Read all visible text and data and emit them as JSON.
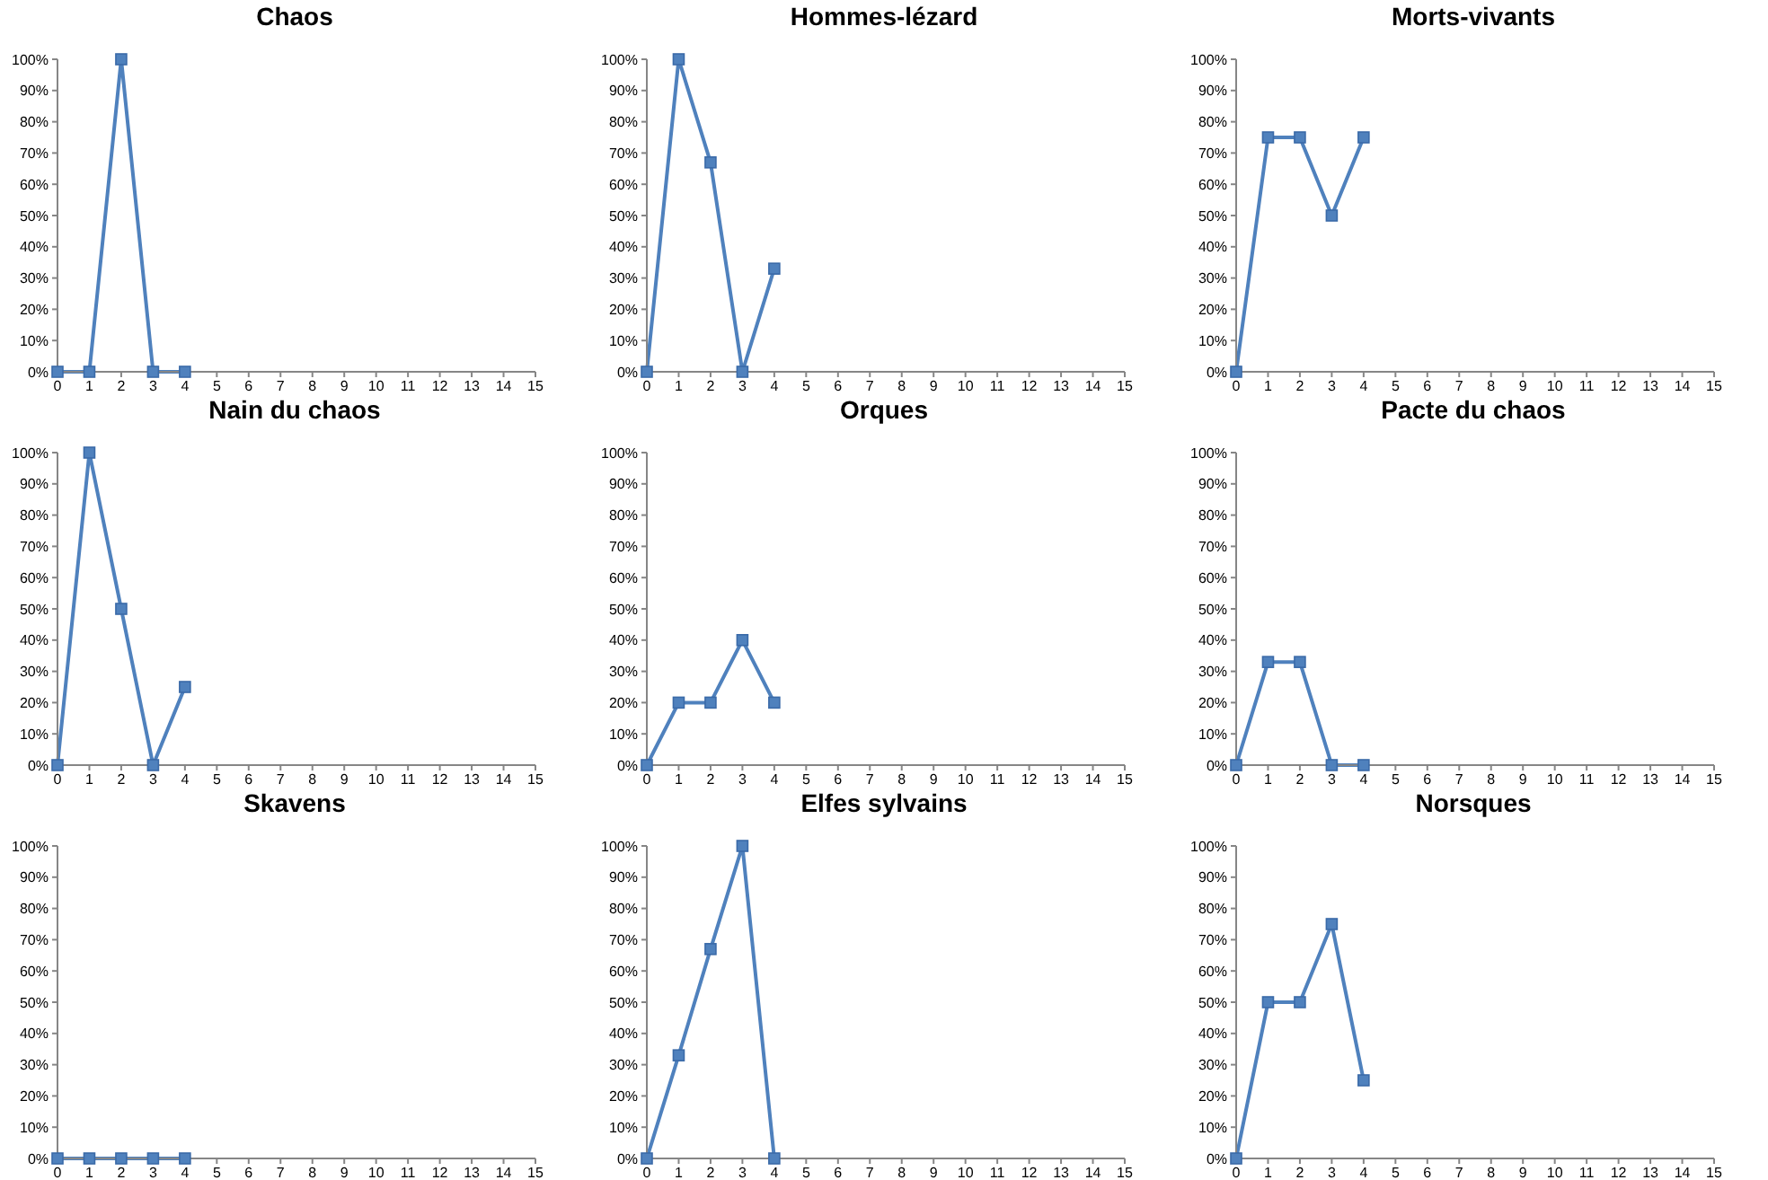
{
  "chart_data": [
    {
      "type": "line",
      "title": "Chaos",
      "x": [
        0,
        1,
        2,
        3,
        4
      ],
      "values": [
        0,
        0,
        100,
        0,
        0
      ],
      "color": "#4f81bd",
      "marker": "square",
      "xlim": [
        0,
        15
      ],
      "xticks": [
        0,
        1,
        2,
        3,
        4,
        5,
        6,
        7,
        8,
        9,
        10,
        11,
        12,
        13,
        14,
        15
      ],
      "ylim": [
        0,
        100
      ],
      "yticks": [
        {
          "value": 0,
          "label": "0%"
        },
        {
          "value": 10,
          "label": "10%"
        },
        {
          "value": 20,
          "label": "20%"
        },
        {
          "value": 30,
          "label": "30%"
        },
        {
          "value": 40,
          "label": "40%"
        },
        {
          "value": 50,
          "label": "50%"
        },
        {
          "value": 60,
          "label": "60%"
        },
        {
          "value": 70,
          "label": "70%"
        },
        {
          "value": 80,
          "label": "80%"
        },
        {
          "value": 90,
          "label": "90%"
        },
        {
          "value": 100,
          "label": "100%"
        }
      ]
    },
    {
      "type": "line",
      "title": "Hommes-lézard",
      "x": [
        0,
        1,
        2,
        3,
        4
      ],
      "values": [
        0,
        100,
        67,
        0,
        33
      ],
      "color": "#4f81bd",
      "marker": "square",
      "xlim": [
        0,
        15
      ],
      "xticks": [
        0,
        1,
        2,
        3,
        4,
        5,
        6,
        7,
        8,
        9,
        10,
        11,
        12,
        13,
        14,
        15
      ],
      "ylim": [
        0,
        100
      ],
      "yticks": [
        {
          "value": 0,
          "label": "0%"
        },
        {
          "value": 10,
          "label": "10%"
        },
        {
          "value": 20,
          "label": "20%"
        },
        {
          "value": 30,
          "label": "30%"
        },
        {
          "value": 40,
          "label": "40%"
        },
        {
          "value": 50,
          "label": "50%"
        },
        {
          "value": 60,
          "label": "60%"
        },
        {
          "value": 70,
          "label": "70%"
        },
        {
          "value": 80,
          "label": "80%"
        },
        {
          "value": 90,
          "label": "90%"
        },
        {
          "value": 100,
          "label": "100%"
        }
      ]
    },
    {
      "type": "line",
      "title": "Morts-vivants",
      "x": [
        0,
        1,
        2,
        3,
        4
      ],
      "values": [
        0,
        75,
        75,
        50,
        75
      ],
      "color": "#4f81bd",
      "marker": "square",
      "xlim": [
        0,
        15
      ],
      "xticks": [
        0,
        1,
        2,
        3,
        4,
        5,
        6,
        7,
        8,
        9,
        10,
        11,
        12,
        13,
        14,
        15
      ],
      "ylim": [
        0,
        100
      ],
      "yticks": [
        {
          "value": 0,
          "label": "0%"
        },
        {
          "value": 10,
          "label": "10%"
        },
        {
          "value": 20,
          "label": "20%"
        },
        {
          "value": 30,
          "label": "30%"
        },
        {
          "value": 40,
          "label": "40%"
        },
        {
          "value": 50,
          "label": "50%"
        },
        {
          "value": 60,
          "label": "60%"
        },
        {
          "value": 70,
          "label": "70%"
        },
        {
          "value": 80,
          "label": "80%"
        },
        {
          "value": 90,
          "label": "90%"
        },
        {
          "value": 100,
          "label": "100%"
        }
      ]
    },
    {
      "type": "line",
      "title": "Nain du chaos",
      "x": [
        0,
        1,
        2,
        3,
        4
      ],
      "values": [
        0,
        100,
        50,
        0,
        25
      ],
      "color": "#4f81bd",
      "marker": "square",
      "xlim": [
        0,
        15
      ],
      "xticks": [
        0,
        1,
        2,
        3,
        4,
        5,
        6,
        7,
        8,
        9,
        10,
        11,
        12,
        13,
        14,
        15
      ],
      "ylim": [
        0,
        100
      ],
      "yticks": [
        {
          "value": 0,
          "label": "0%"
        },
        {
          "value": 10,
          "label": "10%"
        },
        {
          "value": 20,
          "label": "20%"
        },
        {
          "value": 30,
          "label": "30%"
        },
        {
          "value": 40,
          "label": "40%"
        },
        {
          "value": 50,
          "label": "50%"
        },
        {
          "value": 60,
          "label": "60%"
        },
        {
          "value": 70,
          "label": "70%"
        },
        {
          "value": 80,
          "label": "80%"
        },
        {
          "value": 90,
          "label": "90%"
        },
        {
          "value": 100,
          "label": "100%"
        }
      ]
    },
    {
      "type": "line",
      "title": "Orques",
      "x": [
        0,
        1,
        2,
        3,
        4
      ],
      "values": [
        0,
        20,
        20,
        40,
        20
      ],
      "color": "#4f81bd",
      "marker": "square",
      "xlim": [
        0,
        15
      ],
      "xticks": [
        0,
        1,
        2,
        3,
        4,
        5,
        6,
        7,
        8,
        9,
        10,
        11,
        12,
        13,
        14,
        15
      ],
      "ylim": [
        0,
        100
      ],
      "yticks": [
        {
          "value": 0,
          "label": "0%"
        },
        {
          "value": 10,
          "label": "10%"
        },
        {
          "value": 20,
          "label": "20%"
        },
        {
          "value": 30,
          "label": "30%"
        },
        {
          "value": 40,
          "label": "40%"
        },
        {
          "value": 50,
          "label": "50%"
        },
        {
          "value": 60,
          "label": "60%"
        },
        {
          "value": 70,
          "label": "70%"
        },
        {
          "value": 80,
          "label": "80%"
        },
        {
          "value": 90,
          "label": "90%"
        },
        {
          "value": 100,
          "label": "100%"
        }
      ]
    },
    {
      "type": "line",
      "title": "Pacte du chaos",
      "x": [
        0,
        1,
        2,
        3,
        4
      ],
      "values": [
        0,
        33,
        33,
        0,
        0
      ],
      "color": "#4f81bd",
      "marker": "square",
      "xlim": [
        0,
        15
      ],
      "xticks": [
        0,
        1,
        2,
        3,
        4,
        5,
        6,
        7,
        8,
        9,
        10,
        11,
        12,
        13,
        14,
        15
      ],
      "ylim": [
        0,
        100
      ],
      "yticks": [
        {
          "value": 0,
          "label": "0%"
        },
        {
          "value": 10,
          "label": "10%"
        },
        {
          "value": 20,
          "label": "20%"
        },
        {
          "value": 30,
          "label": "30%"
        },
        {
          "value": 40,
          "label": "40%"
        },
        {
          "value": 50,
          "label": "50%"
        },
        {
          "value": 60,
          "label": "60%"
        },
        {
          "value": 70,
          "label": "70%"
        },
        {
          "value": 80,
          "label": "80%"
        },
        {
          "value": 90,
          "label": "90%"
        },
        {
          "value": 100,
          "label": "100%"
        }
      ]
    },
    {
      "type": "line",
      "title": "Skavens",
      "x": [
        0,
        1,
        2,
        3,
        4
      ],
      "values": [
        0,
        0,
        0,
        0,
        0
      ],
      "color": "#4f81bd",
      "marker": "square",
      "xlim": [
        0,
        15
      ],
      "xticks": [
        0,
        1,
        2,
        3,
        4,
        5,
        6,
        7,
        8,
        9,
        10,
        11,
        12,
        13,
        14,
        15
      ],
      "ylim": [
        0,
        100
      ],
      "yticks": [
        {
          "value": 0,
          "label": "0%"
        },
        {
          "value": 10,
          "label": "10%"
        },
        {
          "value": 20,
          "label": "20%"
        },
        {
          "value": 30,
          "label": "30%"
        },
        {
          "value": 40,
          "label": "40%"
        },
        {
          "value": 50,
          "label": "50%"
        },
        {
          "value": 60,
          "label": "60%"
        },
        {
          "value": 70,
          "label": "70%"
        },
        {
          "value": 80,
          "label": "80%"
        },
        {
          "value": 90,
          "label": "90%"
        },
        {
          "value": 100,
          "label": "100%"
        }
      ]
    },
    {
      "type": "line",
      "title": "Elfes sylvains",
      "x": [
        0,
        1,
        2,
        3,
        4
      ],
      "values": [
        0,
        33,
        67,
        100,
        0
      ],
      "color": "#4f81bd",
      "marker": "square",
      "xlim": [
        0,
        15
      ],
      "xticks": [
        0,
        1,
        2,
        3,
        4,
        5,
        6,
        7,
        8,
        9,
        10,
        11,
        12,
        13,
        14,
        15
      ],
      "ylim": [
        0,
        100
      ],
      "yticks": [
        {
          "value": 0,
          "label": "0%"
        },
        {
          "value": 10,
          "label": "10%"
        },
        {
          "value": 20,
          "label": "20%"
        },
        {
          "value": 30,
          "label": "30%"
        },
        {
          "value": 40,
          "label": "40%"
        },
        {
          "value": 50,
          "label": "50%"
        },
        {
          "value": 60,
          "label": "60%"
        },
        {
          "value": 70,
          "label": "70%"
        },
        {
          "value": 80,
          "label": "80%"
        },
        {
          "value": 90,
          "label": "90%"
        },
        {
          "value": 100,
          "label": "100%"
        }
      ]
    },
    {
      "type": "line",
      "title": "Norsques",
      "x": [
        0,
        1,
        2,
        3,
        4
      ],
      "values": [
        0,
        50,
        50,
        75,
        25
      ],
      "color": "#4f81bd",
      "marker": "square",
      "xlim": [
        0,
        15
      ],
      "xticks": [
        0,
        1,
        2,
        3,
        4,
        5,
        6,
        7,
        8,
        9,
        10,
        11,
        12,
        13,
        14,
        15
      ],
      "ylim": [
        0,
        100
      ],
      "yticks": [
        {
          "value": 0,
          "label": "0%"
        },
        {
          "value": 10,
          "label": "10%"
        },
        {
          "value": 20,
          "label": "20%"
        },
        {
          "value": 30,
          "label": "30%"
        },
        {
          "value": 40,
          "label": "40%"
        },
        {
          "value": 50,
          "label": "50%"
        },
        {
          "value": 60,
          "label": "60%"
        },
        {
          "value": 70,
          "label": "70%"
        },
        {
          "value": 80,
          "label": "80%"
        },
        {
          "value": 90,
          "label": "90%"
        },
        {
          "value": 100,
          "label": "100%"
        }
      ]
    }
  ]
}
